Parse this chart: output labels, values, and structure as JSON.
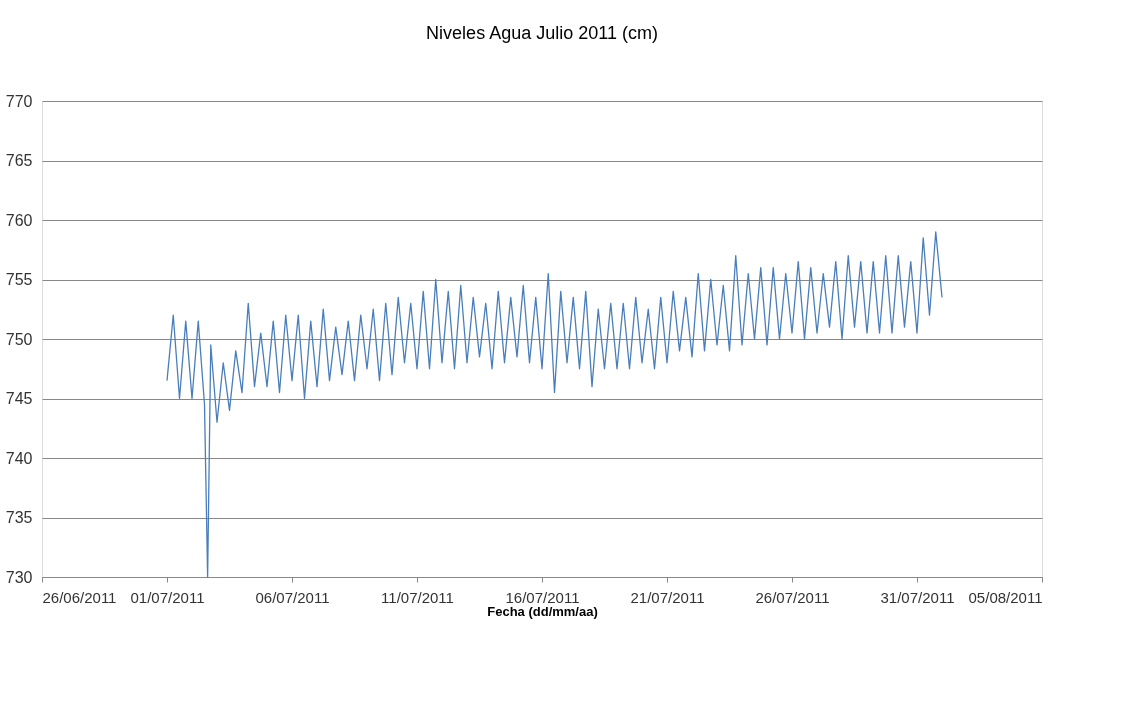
{
  "chart_data": {
    "type": "line",
    "title": "Niveles Agua Julio 2011 (cm)",
    "xlabel": "Fecha (dd/mm/aa)",
    "x": [
      "2011-07-01T00:00",
      "2011-07-01T06:00",
      "2011-07-01T12:00",
      "2011-07-01T18:00",
      "2011-07-02T00:00",
      "2011-07-02T06:00",
      "2011-07-02T12:00",
      "2011-07-02T15:00",
      "2011-07-02T18:00",
      "2011-07-03T00:00",
      "2011-07-03T06:00",
      "2011-07-03T12:00",
      "2011-07-03T18:00",
      "2011-07-04T00:00",
      "2011-07-04T06:00",
      "2011-07-04T12:00",
      "2011-07-04T18:00",
      "2011-07-05T00:00",
      "2011-07-05T06:00",
      "2011-07-05T12:00",
      "2011-07-05T18:00",
      "2011-07-06T00:00",
      "2011-07-06T06:00",
      "2011-07-06T12:00",
      "2011-07-06T18:00",
      "2011-07-07T00:00",
      "2011-07-07T06:00",
      "2011-07-07T12:00",
      "2011-07-07T18:00",
      "2011-07-08T00:00",
      "2011-07-08T06:00",
      "2011-07-08T12:00",
      "2011-07-08T18:00",
      "2011-07-09T00:00",
      "2011-07-09T06:00",
      "2011-07-09T12:00",
      "2011-07-09T18:00",
      "2011-07-10T00:00",
      "2011-07-10T06:00",
      "2011-07-10T12:00",
      "2011-07-10T18:00",
      "2011-07-11T00:00",
      "2011-07-11T06:00",
      "2011-07-11T12:00",
      "2011-07-11T18:00",
      "2011-07-12T00:00",
      "2011-07-12T06:00",
      "2011-07-12T12:00",
      "2011-07-12T18:00",
      "2011-07-13T00:00",
      "2011-07-13T06:00",
      "2011-07-13T12:00",
      "2011-07-13T18:00",
      "2011-07-14T00:00",
      "2011-07-14T06:00",
      "2011-07-14T12:00",
      "2011-07-14T18:00",
      "2011-07-15T00:00",
      "2011-07-15T06:00",
      "2011-07-15T12:00",
      "2011-07-15T18:00",
      "2011-07-16T00:00",
      "2011-07-16T06:00",
      "2011-07-16T12:00",
      "2011-07-16T18:00",
      "2011-07-17T00:00",
      "2011-07-17T06:00",
      "2011-07-17T12:00",
      "2011-07-17T18:00",
      "2011-07-18T00:00",
      "2011-07-18T06:00",
      "2011-07-18T12:00",
      "2011-07-18T18:00",
      "2011-07-19T00:00",
      "2011-07-19T06:00",
      "2011-07-19T12:00",
      "2011-07-19T18:00",
      "2011-07-20T00:00",
      "2011-07-20T06:00",
      "2011-07-20T12:00",
      "2011-07-20T18:00",
      "2011-07-21T00:00",
      "2011-07-21T06:00",
      "2011-07-21T12:00",
      "2011-07-21T18:00",
      "2011-07-22T00:00",
      "2011-07-22T06:00",
      "2011-07-22T12:00",
      "2011-07-22T18:00",
      "2011-07-23T00:00",
      "2011-07-23T06:00",
      "2011-07-23T12:00",
      "2011-07-23T18:00",
      "2011-07-24T00:00",
      "2011-07-24T06:00",
      "2011-07-24T12:00",
      "2011-07-24T18:00",
      "2011-07-25T00:00",
      "2011-07-25T06:00",
      "2011-07-25T12:00",
      "2011-07-25T18:00",
      "2011-07-26T00:00",
      "2011-07-26T06:00",
      "2011-07-26T12:00",
      "2011-07-26T18:00",
      "2011-07-27T00:00",
      "2011-07-27T06:00",
      "2011-07-27T12:00",
      "2011-07-27T18:00",
      "2011-07-28T00:00",
      "2011-07-28T06:00",
      "2011-07-28T12:00",
      "2011-07-28T18:00",
      "2011-07-29T00:00",
      "2011-07-29T06:00",
      "2011-07-29T12:00",
      "2011-07-29T18:00",
      "2011-07-30T00:00",
      "2011-07-30T06:00",
      "2011-07-30T12:00",
      "2011-07-30T18:00",
      "2011-07-31T00:00",
      "2011-07-31T06:00",
      "2011-07-31T12:00",
      "2011-07-31T18:00",
      "2011-08-01T00:00"
    ],
    "series": [
      {
        "color": "#4a7ebb",
        "values": [
          746.5,
          752,
          745,
          751.5,
          745,
          751.5,
          744.5,
          730,
          749.5,
          743,
          748,
          744,
          749,
          745.5,
          753,
          746,
          750.5,
          746,
          751.5,
          745.5,
          752,
          746.5,
          752,
          745,
          751.5,
          746,
          752.5,
          746.5,
          751,
          747,
          751.5,
          746.5,
          752,
          747.5,
          752.5,
          746.5,
          753,
          747,
          753.5,
          748,
          753,
          747.5,
          754,
          747.5,
          755,
          748,
          754,
          747.5,
          754.5,
          748,
          753.5,
          748.5,
          753,
          747.5,
          754,
          748,
          753.5,
          748.5,
          754.5,
          748,
          753.5,
          747.5,
          755.5,
          745.5,
          754,
          748,
          753.5,
          747.5,
          754,
          746,
          752.5,
          747.5,
          753,
          747.5,
          753,
          747.5,
          753.5,
          748,
          752.5,
          747.5,
          753.5,
          748,
          754,
          749,
          753.5,
          748.5,
          755.5,
          749,
          755,
          749.5,
          754.5,
          749,
          757,
          749.5,
          755.5,
          750,
          756,
          749.5,
          756,
          750,
          755.5,
          750.5,
          756.5,
          750,
          756,
          750.5,
          755.5,
          751,
          756.5,
          750,
          757,
          751,
          756.5,
          750.5,
          756.5,
          750.5,
          757,
          750.5,
          757,
          751,
          756.5,
          750.5,
          758.5,
          752,
          759,
          753.5
        ]
      }
    ],
    "xlim": [
      "2011-06-26",
      "2011-08-05"
    ],
    "xticks": [
      {
        "value": "2011-06-26",
        "label": "26/06/2011"
      },
      {
        "value": "2011-07-01",
        "label": "01/07/2011"
      },
      {
        "value": "2011-07-06",
        "label": "06/07/2011"
      },
      {
        "value": "2011-07-11",
        "label": "11/07/2011"
      },
      {
        "value": "2011-07-16",
        "label": "16/07/2011"
      },
      {
        "value": "2011-07-21",
        "label": "21/07/2011"
      },
      {
        "value": "2011-07-26",
        "label": "26/07/2011"
      },
      {
        "value": "2011-07-31",
        "label": "31/07/2011"
      },
      {
        "value": "2011-08-05",
        "label": "05/08/2011"
      }
    ],
    "ylim": [
      730,
      770
    ],
    "yticks": [
      730,
      735,
      740,
      745,
      750,
      755,
      760,
      765,
      770
    ],
    "grid": "y",
    "legend": false,
    "marker": "none",
    "line_style": "solid"
  }
}
